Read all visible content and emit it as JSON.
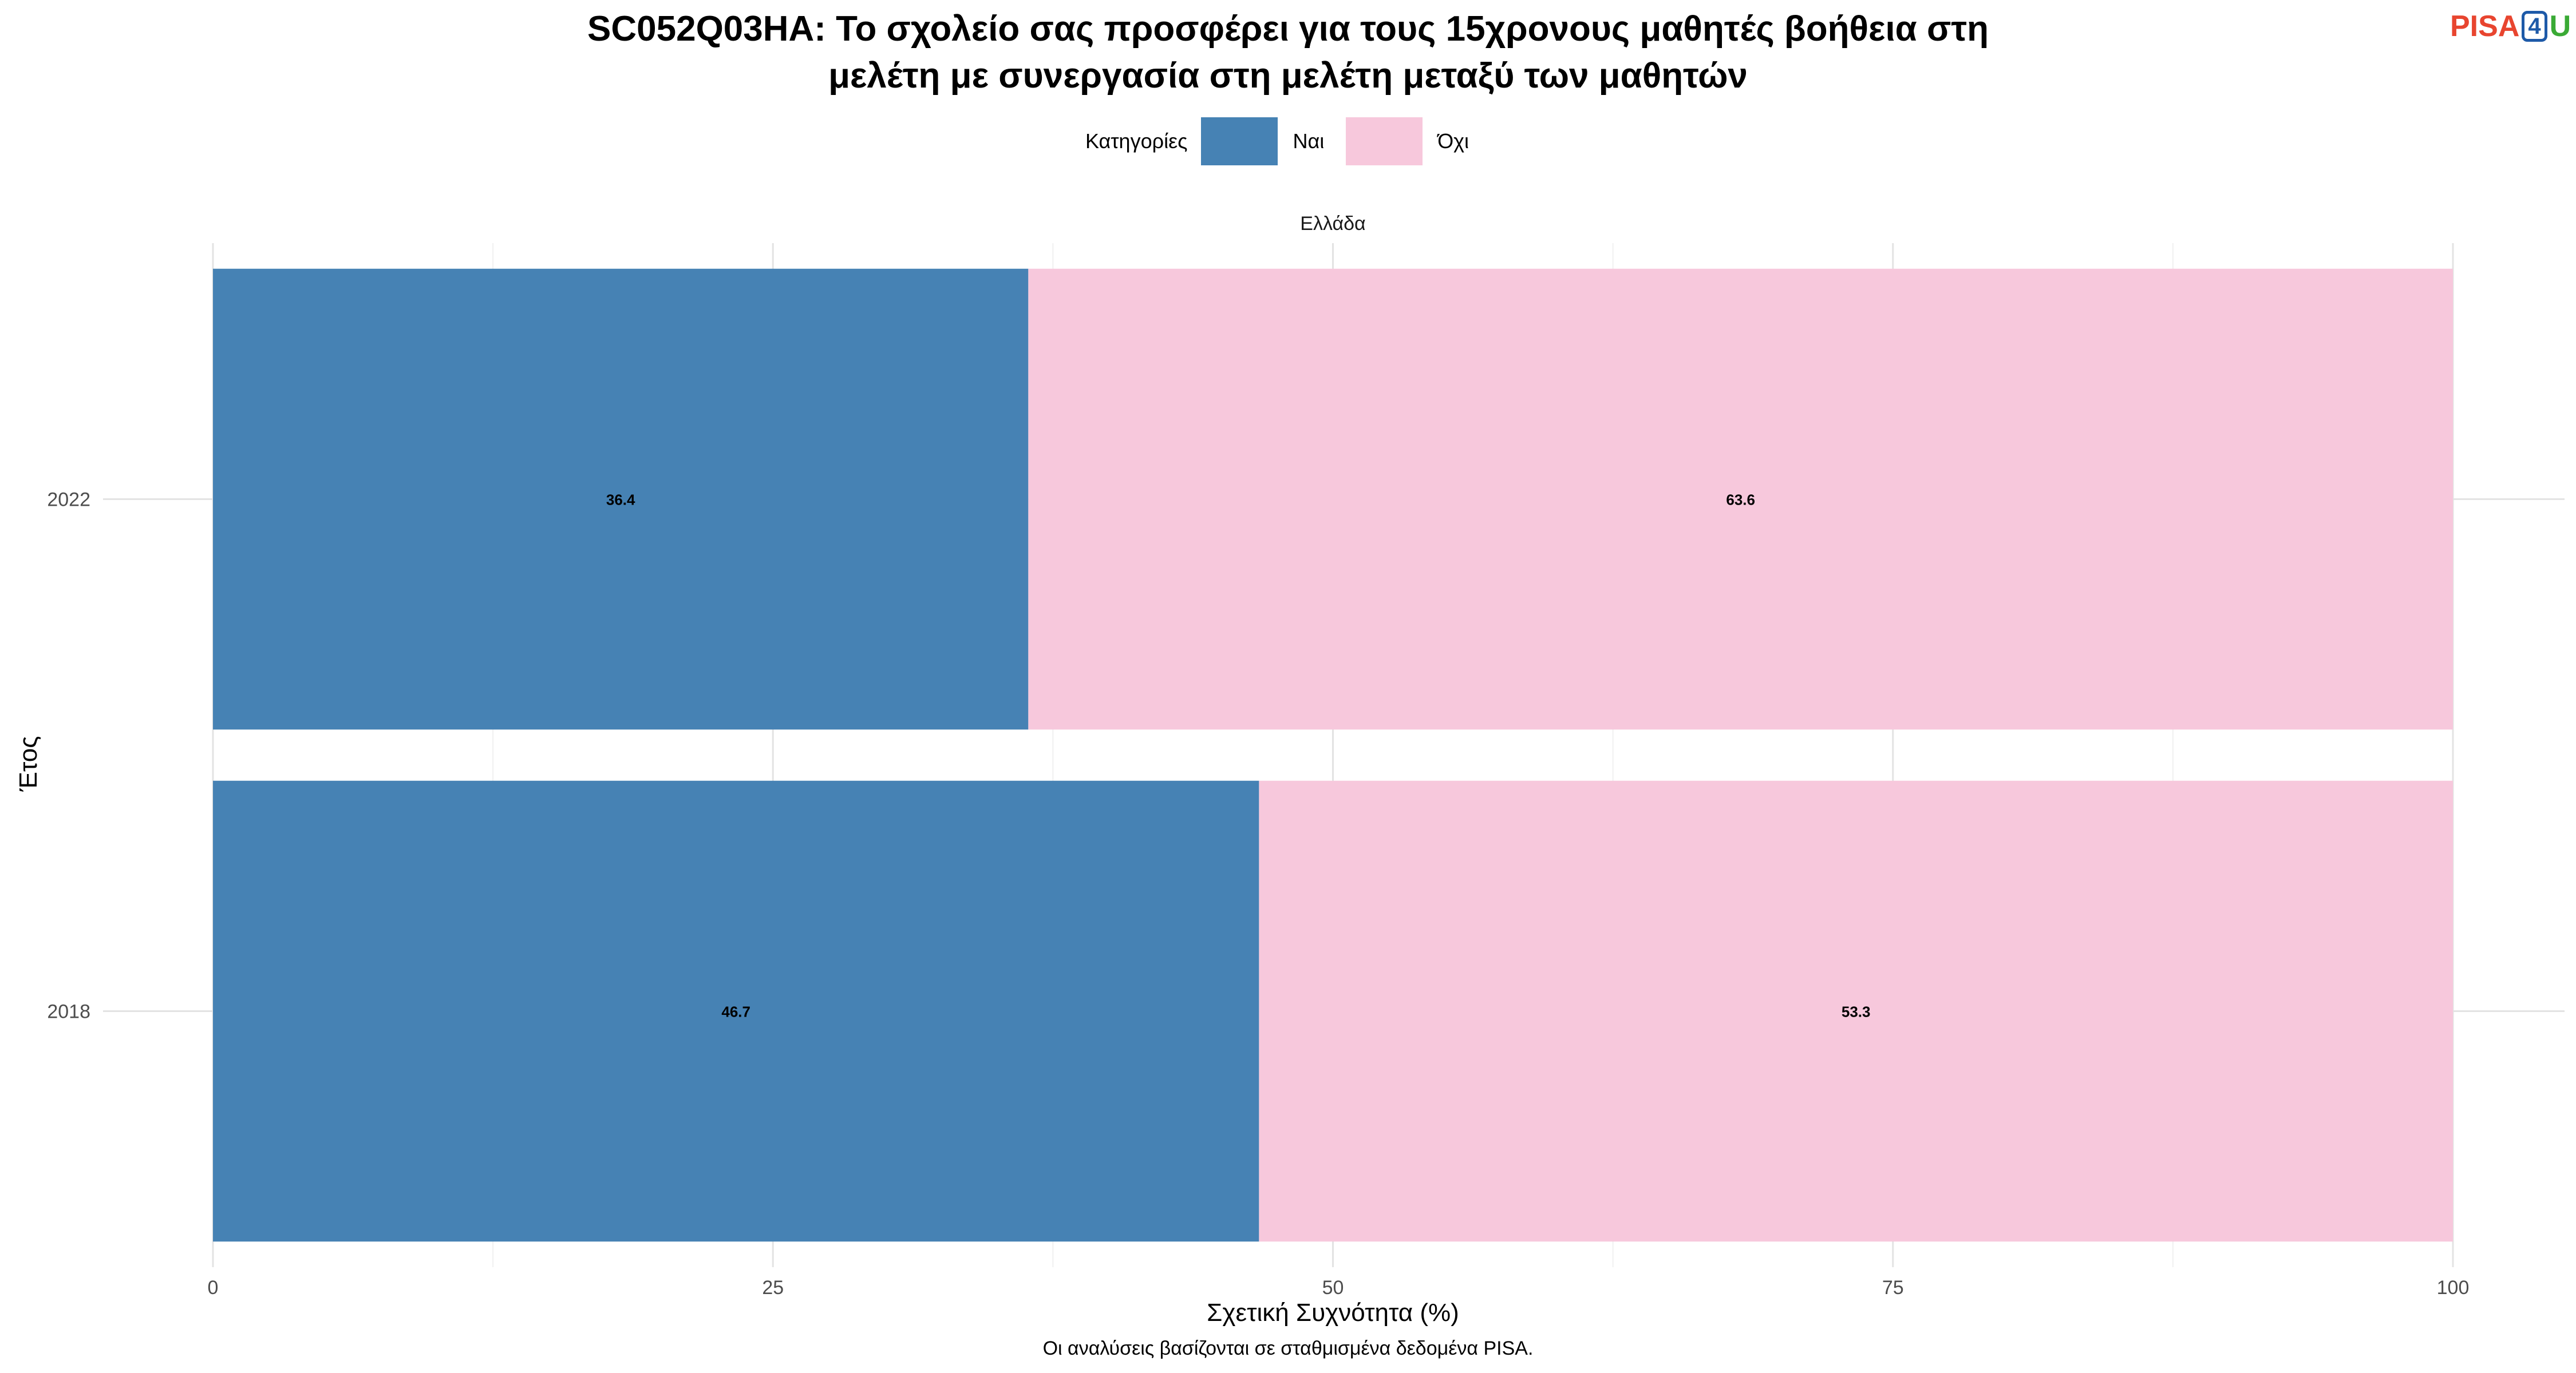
{
  "title_line1": "SC052Q03HA: Το σχολείο σας προσφέρει για τους 15χρονους μαθητές βοήθεια στη",
  "title_line2": "μελέτη με συνεργασία στη μελέτη μεταξύ των μαθητών",
  "logo": {
    "part1": "PISA",
    "part2": "4",
    "part3": "U"
  },
  "legend": {
    "title": "Κατηγορίες",
    "items": [
      {
        "label": "Ναι",
        "color": "#4682b4"
      },
      {
        "label": "Όχι",
        "color": "#f7c8dc"
      }
    ]
  },
  "caption": "Οι αναλύσεις βασίζονται σε σταθμισμένα δεδομένα PISA.",
  "chart_data": {
    "type": "bar",
    "orientation": "horizontal",
    "stacked": true,
    "facet": "Ελλάδα",
    "categories": [
      "2022",
      "2018"
    ],
    "series": [
      {
        "name": "Ναι",
        "values": [
          36.4,
          46.7
        ],
        "color": "#4682b4"
      },
      {
        "name": "Όχι",
        "values": [
          63.6,
          53.3
        ],
        "color": "#f7c8dc"
      }
    ],
    "xlabel": "Σχετική Συχνότητα (%)",
    "ylabel": "Έτος",
    "xlim": [
      0,
      100
    ],
    "xticks": [
      0,
      25,
      50,
      75,
      100
    ],
    "grid": true,
    "legend_position": "top"
  }
}
